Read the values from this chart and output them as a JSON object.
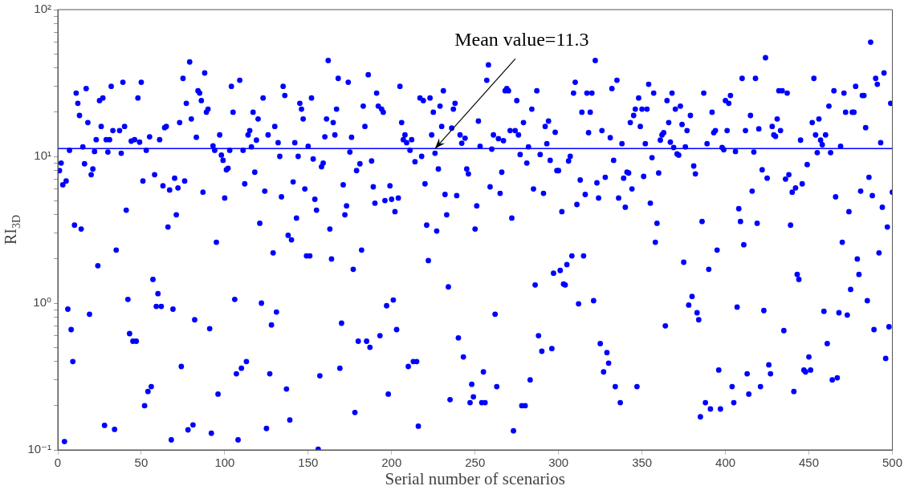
{
  "chart_data": {
    "type": "scatter",
    "xlabel": "Serial number of scenarios",
    "ylabel": "RI$_{3D}$",
    "x": [
      1,
      2,
      3,
      4,
      5,
      6,
      7,
      8,
      9,
      10,
      11,
      12,
      13,
      14,
      15,
      16,
      17,
      18,
      19,
      20,
      21,
      22,
      23,
      24,
      25,
      26,
      27,
      28,
      29,
      30,
      31,
      32,
      33,
      34,
      35,
      37,
      38,
      39,
      40,
      41,
      42,
      43,
      44,
      45,
      46,
      47,
      48,
      49,
      50,
      51,
      52,
      53,
      54,
      55,
      56,
      57,
      58,
      59,
      60,
      61,
      62,
      63,
      64,
      65,
      66,
      67,
      68,
      69,
      70,
      71,
      72,
      73,
      74,
      75,
      76,
      77,
      78,
      79,
      80,
      81,
      82,
      83,
      84,
      85,
      86,
      87,
      88,
      89,
      90,
      91,
      92,
      93,
      94,
      95,
      96,
      97,
      98,
      99,
      100,
      101,
      102,
      103,
      104,
      105,
      106,
      107,
      108,
      109,
      110,
      111,
      112,
      113,
      114,
      115,
      116,
      117,
      118,
      119,
      120,
      121,
      122,
      123,
      124,
      125,
      126,
      127,
      128,
      129,
      130,
      131,
      132,
      133,
      134,
      135,
      136,
      137,
      138,
      139,
      140,
      141,
      142,
      143,
      144,
      145,
      146,
      147,
      148,
      149,
      150,
      151,
      152,
      153,
      154,
      155,
      156,
      157,
      158,
      159,
      160,
      161,
      162,
      163,
      164,
      165,
      166,
      167,
      168,
      169,
      170,
      171,
      172,
      173,
      174,
      175,
      176,
      177,
      178,
      179,
      180,
      181,
      182,
      183,
      184,
      185,
      186,
      187,
      188,
      189,
      190,
      191,
      192,
      193,
      194,
      195,
      196,
      197,
      198,
      199,
      200,
      201,
      202,
      203,
      204,
      205,
      206,
      207,
      208,
      209,
      210,
      211,
      212,
      213,
      214,
      215,
      216,
      217,
      218,
      219,
      220,
      221,
      222,
      223,
      224,
      225,
      226,
      227,
      228,
      229,
      230,
      231,
      232,
      233,
      234,
      235,
      236,
      237,
      238,
      239,
      240,
      241,
      242,
      243,
      244,
      245,
      246,
      247,
      248,
      249,
      250,
      251,
      252,
      253,
      254,
      255,
      256,
      257,
      258,
      259,
      260,
      261,
      262,
      263,
      264,
      265,
      266,
      267,
      268,
      269,
      270,
      271,
      272,
      273,
      274,
      275,
      276,
      277,
      278,
      279,
      280,
      281,
      282,
      283,
      284,
      285,
      286,
      287,
      288,
      289,
      290,
      291,
      292,
      293,
      294,
      295,
      296,
      297,
      298,
      299,
      300,
      301,
      302,
      303,
      304,
      305,
      306,
      307,
      308,
      309,
      310,
      311,
      312,
      313,
      314,
      315,
      316,
      317,
      318,
      319,
      320,
      321,
      322,
      323,
      324,
      325,
      326,
      327,
      328,
      329,
      330,
      331,
      332,
      333,
      334,
      335,
      336,
      337,
      338,
      339,
      340,
      341,
      342,
      343,
      344,
      345,
      346,
      347,
      348,
      349,
      350,
      351,
      352,
      353,
      354,
      355,
      356,
      357,
      358,
      359,
      360,
      361,
      362,
      363,
      364,
      365,
      366,
      367,
      368,
      369,
      370,
      371,
      372,
      373,
      374,
      375,
      376,
      377,
      378,
      379,
      380,
      381,
      382,
      383,
      384,
      385,
      386,
      387,
      388,
      389,
      390,
      391,
      392,
      393,
      394,
      395,
      396,
      397,
      398,
      399,
      400,
      401,
      402,
      403,
      404,
      405,
      406,
      407,
      408,
      409,
      410,
      411,
      412,
      413,
      414,
      415,
      416,
      417,
      418,
      419,
      420,
      421,
      422,
      423,
      424,
      425,
      426,
      427,
      428,
      429,
      430,
      431,
      432,
      433,
      434,
      435,
      436,
      437,
      438,
      439,
      440,
      441,
      442,
      443,
      444,
      445,
      446,
      447,
      448,
      449,
      450,
      451,
      452,
      453,
      454,
      455,
      456,
      457,
      458,
      459,
      460,
      461,
      462,
      463,
      464,
      465,
      466,
      467,
      468,
      469,
      470,
      471,
      472,
      473,
      474,
      475,
      476,
      477,
      478,
      479,
      480,
      481,
      482,
      483,
      484,
      485,
      486,
      487,
      488,
      489,
      490,
      491,
      492,
      493,
      494,
      495,
      496,
      497,
      498,
      499,
      500
    ],
    "series": [
      {
        "color": "#0000ff",
        "values": [
          8.0,
          9.0,
          6.4,
          0.114,
          6.8,
          0.91,
          11,
          0.66,
          0.4,
          3.4,
          27,
          23,
          19,
          3.2,
          11.6,
          8.9,
          29,
          17,
          0.84,
          7.5,
          8.2,
          10.8,
          13,
          1.8,
          24,
          16,
          25,
          0.147,
          13,
          10.7,
          13,
          30,
          15,
          0.138,
          2.3,
          15,
          10.5,
          32,
          16,
          4.3,
          1.06,
          0.62,
          12.7,
          0.55,
          13,
          0.55,
          25,
          12.5,
          32,
          6.8,
          0.2,
          11,
          0.25,
          13.6,
          0.27,
          1.45,
          7.5,
          0.95,
          1.16,
          13,
          0.95,
          6.3,
          15.7,
          16,
          3.3,
          5.9,
          0.117,
          0.91,
          7.1,
          4.0,
          6.1,
          17,
          0.37,
          34,
          6.8,
          23,
          0.137,
          44,
          18,
          0.148,
          0.77,
          13.5,
          28,
          27,
          24,
          5.7,
          37,
          20,
          21,
          0.67,
          0.13,
          11.8,
          11,
          2.6,
          0.24,
          14,
          10.2,
          9.4,
          5.2,
          8.1,
          8.3,
          11,
          30,
          20,
          1.06,
          0.33,
          0.117,
          33,
          0.36,
          11,
          6.5,
          0.4,
          14,
          15,
          11.6,
          20,
          7.8,
          12.9,
          18,
          3.5,
          1.0,
          25,
          5.8,
          0.14,
          14,
          0.33,
          0.71,
          2.2,
          16,
          0.87,
          12.4,
          10,
          5.3,
          30,
          26,
          0.26,
          2.9,
          0.16,
          2.7,
          6.7,
          12.4,
          3.8,
          10,
          23,
          21,
          18,
          6.0,
          2.1,
          11.7,
          2.1,
          25,
          9.6,
          5.1,
          4.3,
          0.101,
          0.32,
          8.5,
          9.0,
          13.6,
          18,
          45,
          3.2,
          2.0,
          17,
          14,
          21,
          34,
          0.36,
          0.73,
          6.4,
          4.0,
          4.6,
          32,
          10.7,
          13.5,
          1.7,
          0.18,
          8.0,
          0.55,
          8.9,
          2.3,
          22,
          16,
          0.55,
          36,
          0.5,
          9.3,
          6.2,
          4.8,
          27,
          22,
          0.6,
          21,
          20,
          5.0,
          0.96,
          0.24,
          6.3,
          5.1,
          1.05,
          4.2,
          0.66,
          5.2,
          30,
          17,
          13,
          14,
          12.4,
          0.37,
          11,
          13,
          0.4,
          9.2,
          0.4,
          0.145,
          25,
          10,
          24,
          6.5,
          3.4,
          1.95,
          25,
          14,
          20,
          10.5,
          3.1,
          8.2,
          22,
          16,
          28,
          5.5,
          4.0,
          1.29,
          0.22,
          15.6,
          21,
          23,
          5.4,
          0.58,
          14,
          12.3,
          0.43,
          13.3,
          8.2,
          7.6,
          0.21,
          0.28,
          0.23,
          3.2,
          4.6,
          17.4,
          11.7,
          0.21,
          0.34,
          0.21,
          33,
          42,
          6.2,
          11.2,
          14,
          0.84,
          0.27,
          13.2,
          5.6,
          7.8,
          12.8,
          28,
          29,
          28,
          15,
          3.8,
          0.135,
          15,
          24,
          14,
          10.3,
          0.2,
          17,
          0.2,
          9.0,
          11.6,
          0.3,
          21,
          6.0,
          1.33,
          28,
          0.6,
          10.3,
          0.47,
          5.6,
          16,
          12.2,
          17.4,
          9.4,
          0.49,
          1.6,
          14.6,
          8.0,
          8.0,
          1.67,
          4.2,
          1.35,
          1.33,
          1.83,
          9.3,
          10,
          2.1,
          27,
          32,
          4.7,
          0.99,
          6.9,
          20,
          2.1,
          5.5,
          27,
          14.5,
          20,
          27,
          1.04,
          45,
          6.6,
          5.2,
          0.53,
          15,
          0.34,
          7.2,
          0.46,
          0.39,
          13.4,
          29,
          9.4,
          0.27,
          33,
          5.2,
          0.21,
          12.2,
          7.1,
          4.5,
          7.8,
          7.7,
          17,
          6.0,
          19,
          21,
          0.27,
          25,
          16,
          21,
          7.3,
          12.2,
          21,
          31,
          4.8,
          9.8,
          27,
          2.6,
          3.5,
          7.7,
          12.9,
          14,
          14.5,
          0.7,
          24,
          17,
          12.5,
          27,
          11.5,
          21,
          10.4,
          10.2,
          22,
          16.5,
          1.9,
          11.6,
          15,
          0.97,
          19,
          1.11,
          8.6,
          7.6,
          0.86,
          0.77,
          0.168,
          3.6,
          27,
          0.21,
          12.2,
          1.7,
          0.19,
          20,
          14.5,
          15,
          2.3,
          0.35,
          0.19,
          11.5,
          11.1,
          24,
          15,
          23,
          26,
          0.27,
          0.21,
          10.8,
          0.94,
          4.4,
          3.6,
          34,
          2.5,
          15,
          0.33,
          0.24,
          19,
          5.8,
          10.7,
          34,
          3.5,
          15.4,
          0.27,
          8.1,
          0.89,
          47,
          7.1,
          0.38,
          0.33,
          16,
          14,
          13.7,
          18,
          28,
          15,
          28,
          0.65,
          7.0,
          27,
          7.5,
          3.4,
          5.7,
          0.25,
          6.1,
          1.57,
          1.45,
          12.9,
          6.5,
          0.35,
          0.34,
          8.8,
          0.43,
          0.35,
          17,
          34,
          14,
          10.6,
          18,
          12.9,
          12,
          0.88,
          14,
          0.53,
          22,
          10.6,
          0.3,
          28,
          5.3,
          0.31,
          0.86,
          11.7,
          2.6,
          27,
          20,
          0.83,
          4.2,
          1.24,
          20,
          20,
          30,
          2.0,
          1.57,
          5.8,
          26,
          26,
          15.7,
          1.04,
          7.2,
          60,
          5.4,
          0.66,
          34,
          31,
          2.2,
          12.4,
          4.5,
          37,
          0.42,
          3.3,
          0.69,
          23,
          5.7
        ]
      }
    ],
    "xlim": [
      0,
      500
    ],
    "xticks": [
      0,
      50,
      100,
      150,
      200,
      250,
      300,
      350,
      400,
      450,
      500
    ],
    "ylim": [
      0.1,
      100
    ],
    "log": "y",
    "yticks": [
      {
        "value": 0.1,
        "label": "10⁻¹"
      },
      {
        "value": 0.2,
        "label": null
      },
      {
        "value": 0.3,
        "label": null
      },
      {
        "value": 0.4,
        "label": null
      },
      {
        "value": 0.5,
        "label": null
      },
      {
        "value": 0.6,
        "label": null
      },
      {
        "value": 0.7,
        "label": null
      },
      {
        "value": 0.8,
        "label": null
      },
      {
        "value": 0.9,
        "label": null
      },
      {
        "value": 1,
        "label": "10⁰"
      },
      {
        "value": 2,
        "label": null
      },
      {
        "value": 3,
        "label": null
      },
      {
        "value": 4,
        "label": null
      },
      {
        "value": 5,
        "label": null
      },
      {
        "value": 6,
        "label": null
      },
      {
        "value": 7,
        "label": null
      },
      {
        "value": 8,
        "label": null
      },
      {
        "value": 9,
        "label": null
      },
      {
        "value": 10,
        "label": "10¹"
      },
      {
        "value": 20,
        "label": null
      },
      {
        "value": 30,
        "label": null
      },
      {
        "value": 40,
        "label": null
      },
      {
        "value": 50,
        "label": null
      },
      {
        "value": 60,
        "label": null
      },
      {
        "value": 70,
        "label": null
      },
      {
        "value": 80,
        "label": null
      },
      {
        "value": 90,
        "label": null
      },
      {
        "value": 100,
        "label": "10²"
      }
    ],
    "ref_lines": [
      {
        "axis": "y",
        "value": 11.3,
        "color": "#0000ff"
      }
    ],
    "annotations": [
      {
        "text": "Mean value=11.3",
        "x": 226,
        "y": 11.3
      }
    ],
    "marker": "circle",
    "grid": false,
    "legend": false
  }
}
